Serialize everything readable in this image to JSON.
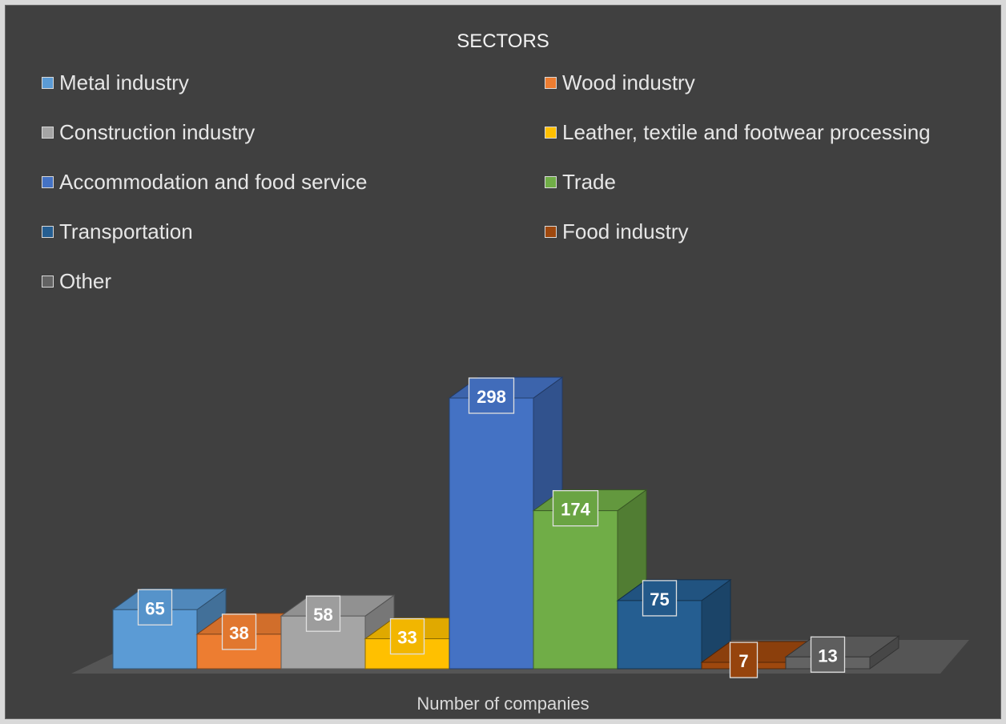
{
  "chart_data": {
    "type": "bar",
    "title": "SECTORS",
    "xlabel": "Number of companies",
    "ylabel": "",
    "ylim": [
      0,
      300
    ],
    "legend_position": "top",
    "grid": false,
    "categories": [
      "Metal industry",
      "Wood industry",
      "Construction industry",
      "Leather, textile and footwear processing",
      "Accommodation and food service",
      "Trade",
      "Transportation",
      "Food industry",
      "Other"
    ],
    "values": [
      65,
      38,
      58,
      33,
      298,
      174,
      75,
      7,
      13
    ],
    "colors": [
      "#5b9bd5",
      "#ed7d31",
      "#a5a5a5",
      "#ffc000",
      "#4472c4",
      "#70ad47",
      "#255e91",
      "#9e480e",
      "#636363"
    ]
  }
}
